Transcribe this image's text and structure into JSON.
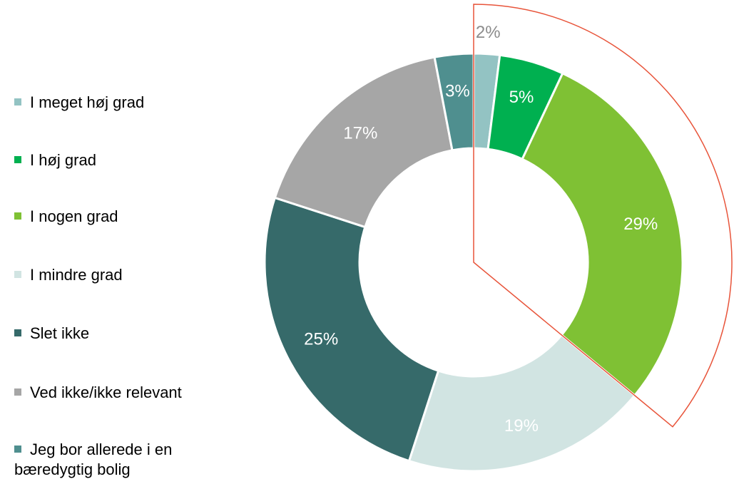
{
  "chart_data": {
    "type": "donut",
    "categories": [
      "I meget høj grad",
      "I høj grad",
      "I nogen grad",
      "I mindre grad",
      "Slet ikke",
      "Ved ikke/ikke relevant",
      "Jeg bor allerede i en bæredygtig bolig"
    ],
    "values": [
      2,
      5,
      29,
      19,
      25,
      17,
      3
    ],
    "value_labels": [
      "2%",
      "5%",
      "29%",
      "19%",
      "25%",
      "17%",
      "3%"
    ],
    "colors": [
      "#93c3c3",
      "#00b050",
      "#7fc134",
      "#d1e4e2",
      "#366a6a",
      "#a6a6a6",
      "#4f8f8f"
    ],
    "legend": "left"
  }
}
